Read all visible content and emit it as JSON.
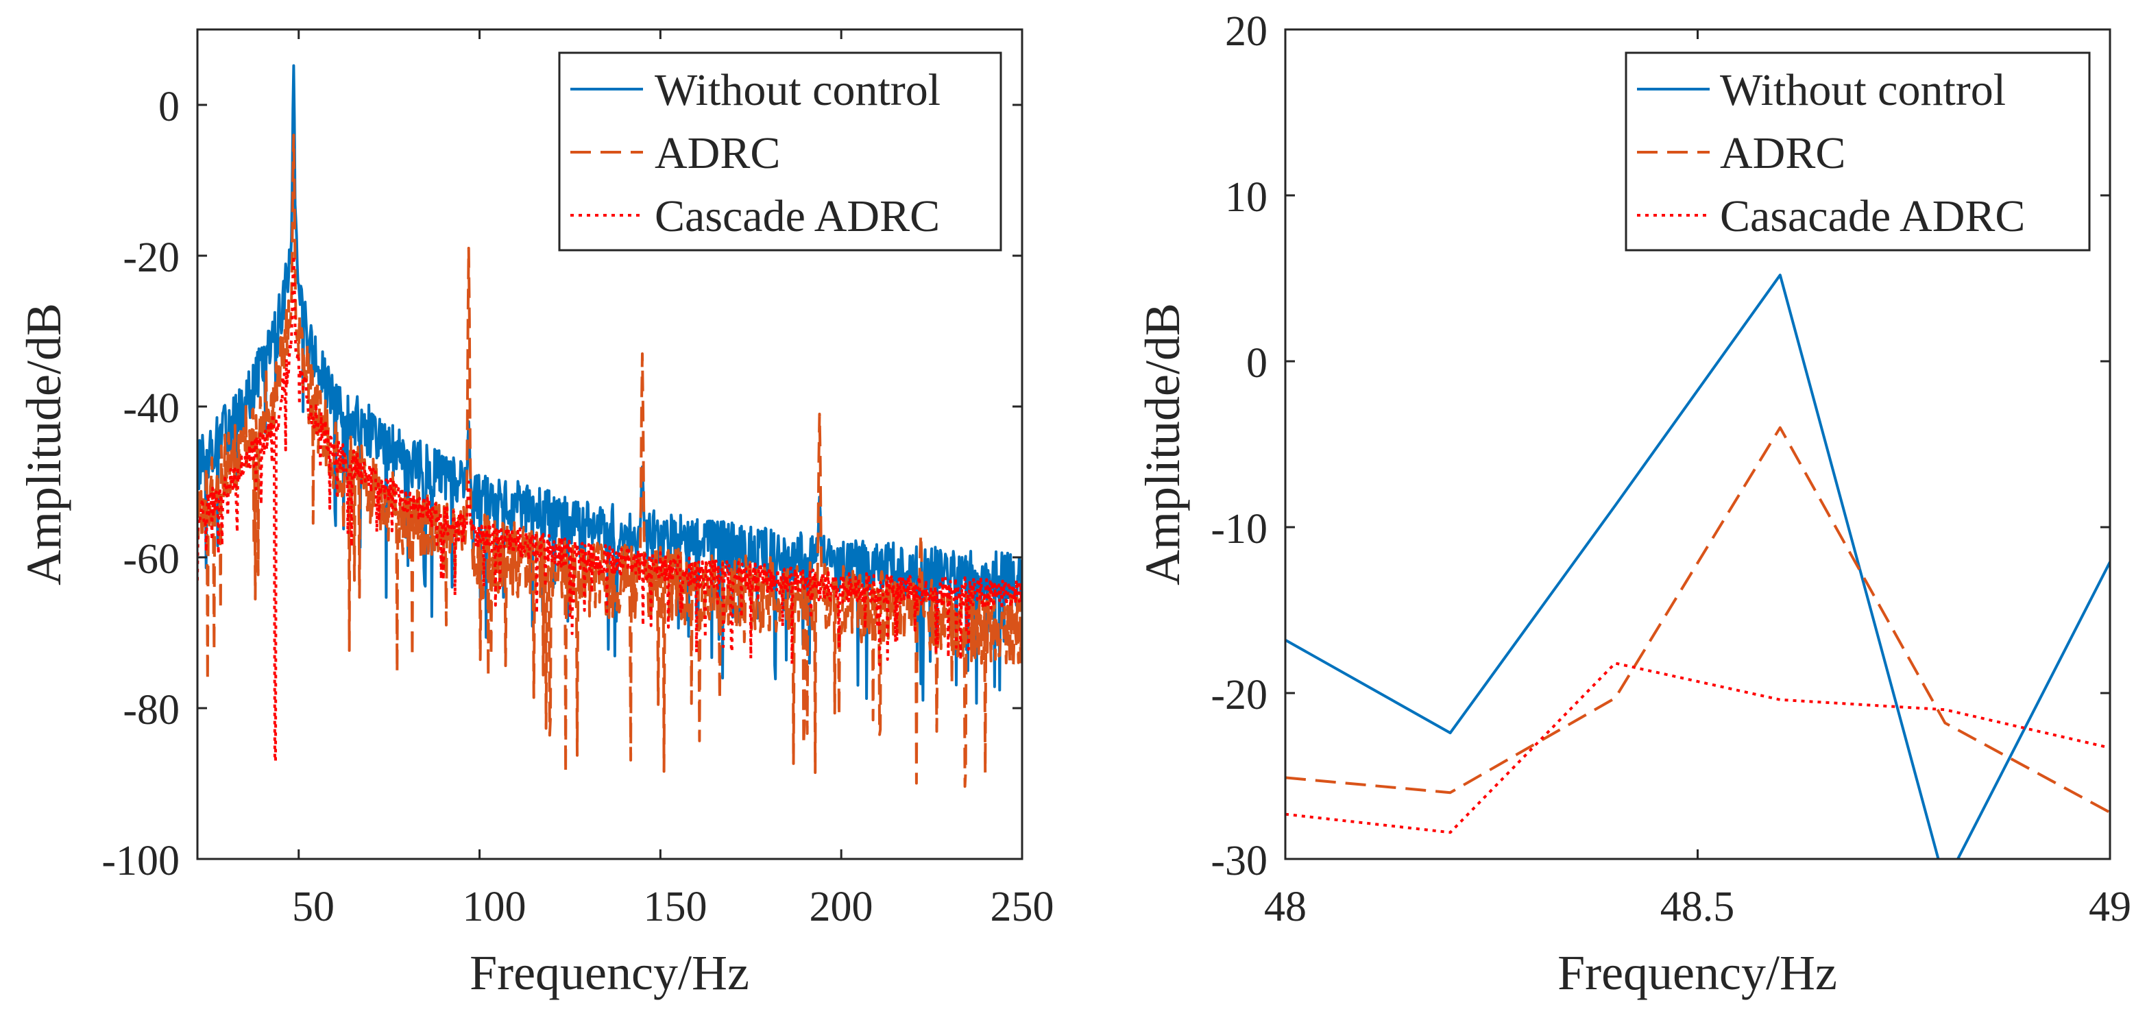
{
  "colors": {
    "without_control": "#0072BD",
    "adrc": "#D95319",
    "cascade_adrc": "#FF0000",
    "axes": "#262626"
  },
  "chart_data": [
    {
      "type": "line",
      "xlabel": "Frequency/Hz",
      "ylabel": "Amplitude/dB",
      "xlim": [
        22,
        250
      ],
      "ylim": [
        -100,
        10
      ],
      "xticks": [
        50,
        100,
        150,
        200,
        250
      ],
      "yticks": [
        -100,
        -80,
        -60,
        -40,
        -20,
        0
      ],
      "xtick_labels": [
        "50",
        "100",
        "150",
        "200",
        "250"
      ],
      "ytick_labels": [
        "-100",
        "-80",
        "-60",
        "-40",
        "-20",
        "0"
      ],
      "legend_position": "top-right",
      "series": [
        {
          "name": "Without control",
          "style": "solid",
          "baseline_db": [
            [
              22,
              -48
            ],
            [
              35,
              -40
            ],
            [
              44,
              -30
            ],
            [
              48,
              -20
            ],
            [
              53,
              -32
            ],
            [
              60,
              -40
            ],
            [
              80,
              -47
            ],
            [
              100,
              -52
            ],
            [
              130,
              -56
            ],
            [
              160,
              -58
            ],
            [
              200,
              -61
            ],
            [
              250,
              -63
            ]
          ],
          "peaks": [
            [
              48.6,
              5.2
            ],
            [
              49.2,
              -15
            ],
            [
              97,
              -42
            ],
            [
              145,
              -48
            ],
            [
              194,
              -52
            ]
          ],
          "noise_db": 7
        },
        {
          "name": "ADRC",
          "style": "dashed",
          "baseline_db": [
            [
              22,
              -54
            ],
            [
              35,
              -45
            ],
            [
              44,
              -38
            ],
            [
              48,
              -28
            ],
            [
              53,
              -38
            ],
            [
              60,
              -47
            ],
            [
              80,
              -55
            ],
            [
              100,
              -59
            ],
            [
              130,
              -63
            ],
            [
              160,
              -64
            ],
            [
              200,
              -66
            ],
            [
              250,
              -70
            ]
          ],
          "peaks": [
            [
              48.6,
              -4
            ],
            [
              97,
              -19
            ],
            [
              145,
              -33
            ],
            [
              194,
              -41
            ],
            [
              222,
              -57
            ]
          ],
          "noise_db": 10
        },
        {
          "name": "Cascade ADRC",
          "style": "dotted",
          "baseline_db": [
            [
              22,
              -55
            ],
            [
              35,
              -48
            ],
            [
              44,
              -42
            ],
            [
              48,
              -32
            ],
            [
              53,
              -40
            ],
            [
              60,
              -46
            ],
            [
              80,
              -53
            ],
            [
              100,
              -57
            ],
            [
              130,
              -60
            ],
            [
              160,
              -62
            ],
            [
              200,
              -64
            ],
            [
              250,
              -65
            ]
          ],
          "peaks": [
            [
              48.6,
              -20
            ],
            [
              97,
              -50
            ]
          ],
          "dips": [
            [
              43.5,
              -87
            ]
          ],
          "noise_db": 4
        }
      ]
    },
    {
      "type": "line",
      "xlabel": "Frequency/Hz",
      "ylabel": "Amplitude/dB",
      "xlim": [
        48,
        49
      ],
      "ylim": [
        -30,
        20
      ],
      "xticks": [
        48,
        48.5,
        49
      ],
      "yticks": [
        -30,
        -20,
        -10,
        0,
        10,
        20
      ],
      "xtick_labels": [
        "48",
        "48.5",
        "49"
      ],
      "ytick_labels": [
        "-30",
        "-20",
        "-10",
        "0",
        "10",
        "20"
      ],
      "legend_position": "top-right",
      "series": [
        {
          "name": "Without control",
          "style": "solid",
          "x": [
            48,
            48.2,
            48.4,
            48.6,
            48.8,
            49
          ],
          "y": [
            -16.8,
            -22.4,
            -8.7,
            5.2,
            -31.5,
            -12.1
          ]
        },
        {
          "name": "ADRC",
          "style": "dashed",
          "x": [
            48,
            48.2,
            48.4,
            48.6,
            48.8,
            49
          ],
          "y": [
            -25.1,
            -26.0,
            -20.3,
            -4.0,
            -21.8,
            -27.2
          ]
        },
        {
          "name": "Casacade ADRC",
          "style": "dotted",
          "x": [
            48,
            48.2,
            48.4,
            48.6,
            48.8,
            49
          ],
          "y": [
            -27.3,
            -28.4,
            -18.2,
            -20.4,
            -21.0,
            -23.3
          ]
        }
      ]
    }
  ]
}
